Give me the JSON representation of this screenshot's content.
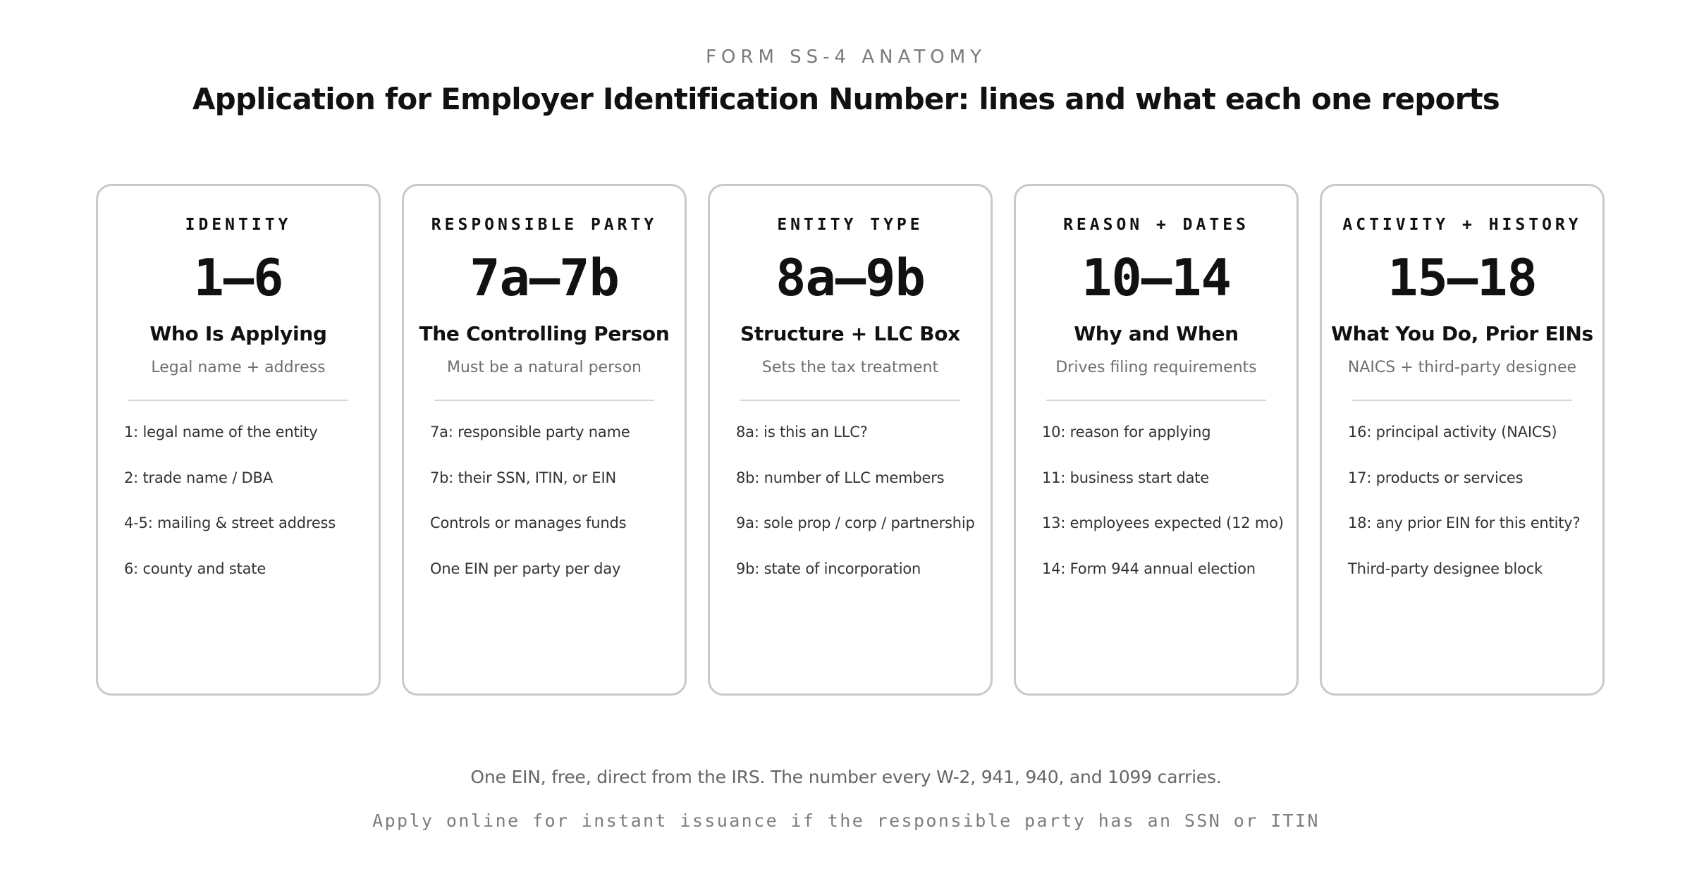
{
  "header": {
    "eyebrow": "FORM SS-4 ANATOMY",
    "title": "Application for Employer Identification Number: lines and what each one reports"
  },
  "cards": [
    {
      "category": "IDENTITY",
      "range": "1–6",
      "heading": "Who Is Applying",
      "subheading": "Legal name + address",
      "lines": [
        "1: legal name of the entity",
        "2: trade name / DBA",
        "4-5: mailing & street address",
        "6: county and state"
      ]
    },
    {
      "category": "RESPONSIBLE PARTY",
      "range": "7a–7b",
      "heading": "The Controlling Person",
      "subheading": "Must be a natural person",
      "lines": [
        "7a: responsible party name",
        "7b: their SSN, ITIN, or EIN",
        "Controls or manages funds",
        "One EIN per party per day"
      ]
    },
    {
      "category": "ENTITY TYPE",
      "range": "8a–9b",
      "heading": "Structure + LLC Box",
      "subheading": "Sets the tax treatment",
      "lines": [
        "8a: is this an LLC?",
        "8b: number of LLC members",
        "9a: sole prop / corp / partnership",
        "9b: state of incorporation"
      ]
    },
    {
      "category": "REASON + DATES",
      "range": "10–14",
      "heading": "Why and When",
      "subheading": "Drives filing requirements",
      "lines": [
        "10: reason for applying",
        "11: business start date",
        "13: employees expected (12 mo)",
        "14: Form 944 annual election"
      ]
    },
    {
      "category": "ACTIVITY + HISTORY",
      "range": "15–18",
      "heading": "What You Do, Prior EINs",
      "subheading": "NAICS + third-party designee",
      "lines": [
        "16: principal activity (NAICS)",
        "17: products or services",
        "18: any prior EIN for this entity?",
        "Third-party designee block"
      ]
    }
  ],
  "footer": {
    "note": "One EIN, free, direct from the IRS. The number every W-2, 941, 940, and 1099 carries.",
    "mono": "Apply online for instant issuance if the responsible party has an SSN or ITIN"
  }
}
